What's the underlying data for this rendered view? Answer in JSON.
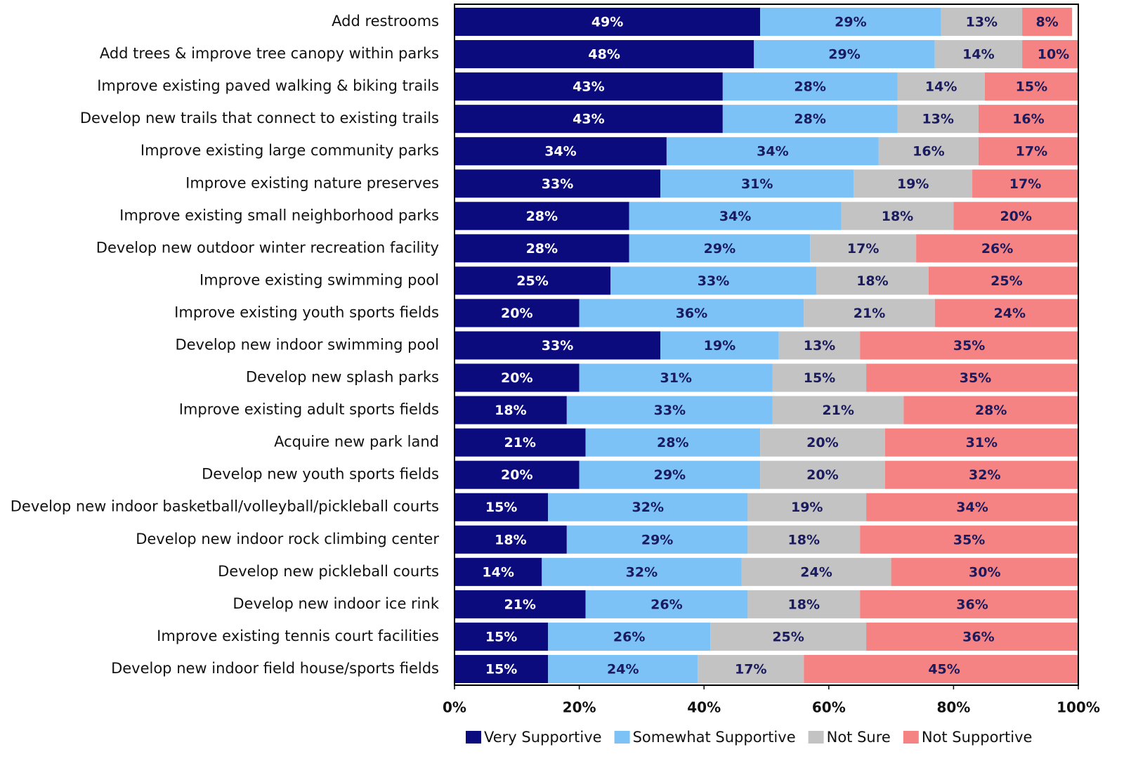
{
  "chart_data": {
    "type": "stacked-barh",
    "categories": [
      "Add restrooms",
      "Add trees & improve tree canopy within parks",
      "Improve existing paved walking & biking trails",
      "Develop new trails that connect to existing trails",
      "Improve existing large community parks",
      "Improve existing nature preserves",
      "Improve existing small neighborhood parks",
      "Develop new outdoor winter recreation facility",
      "Improve existing swimming pool",
      "Improve existing youth sports fields",
      "Develop new indoor swimming pool",
      "Develop new splash parks",
      "Improve existing adult sports fields",
      "Acquire new park land",
      "Develop new youth sports fields",
      "Develop new indoor basketball/volleyball/pickleball courts",
      "Develop new indoor rock climbing center",
      "Develop new pickleball courts",
      "Develop new indoor ice rink",
      "Improve existing tennis court facilities",
      "Develop new indoor field house/sports fields"
    ],
    "series": [
      {
        "name": "Very Supportive",
        "color": "#0b0b7e",
        "values": [
          49,
          48,
          43,
          43,
          34,
          33,
          28,
          28,
          25,
          20,
          33,
          20,
          18,
          21,
          20,
          15,
          18,
          14,
          21,
          15,
          15
        ],
        "value_labels": [
          "49%",
          "48%",
          "43%",
          "43%",
          "34%",
          "33%",
          "28%",
          "28%",
          "25%",
          "20%",
          "33%",
          "20%",
          "18%",
          "21%",
          "20%",
          "15%",
          "18%",
          "14%",
          "21%",
          "15%",
          "15%"
        ]
      },
      {
        "name": "Somewhat Supportive",
        "color": "#7cc2f6",
        "values": [
          29,
          29,
          28,
          28,
          34,
          31,
          34,
          29,
          33,
          36,
          19,
          31,
          33,
          28,
          29,
          32,
          29,
          32,
          26,
          26,
          24
        ],
        "value_labels": [
          "29%",
          "29%",
          "28%",
          "28%",
          "34%",
          "31%",
          "34%",
          "29%",
          "33%",
          "36%",
          "19%",
          "31%",
          "33%",
          "28%",
          "29%",
          "32%",
          "29%",
          "32%",
          "26%",
          "26%",
          "24%"
        ]
      },
      {
        "name": "Not Sure",
        "color": "#c3c3c3",
        "values": [
          13,
          14,
          14,
          13,
          16,
          19,
          18,
          17,
          18,
          21,
          13,
          15,
          21,
          20,
          20,
          19,
          18,
          24,
          18,
          25,
          17
        ],
        "value_labels": [
          "13%",
          "14%",
          "14%",
          "13%",
          "16%",
          "19%",
          "18%",
          "17%",
          "18%",
          "21%",
          "13%",
          "15%",
          "21%",
          "20%",
          "20%",
          "19%",
          "18%",
          "24%",
          "18%",
          "25%",
          "17%"
        ]
      },
      {
        "name": "Not Supportive",
        "color": "#f58383",
        "values": [
          8,
          10,
          15,
          16,
          17,
          17,
          20,
          26,
          25,
          24,
          35,
          35,
          28,
          31,
          32,
          34,
          35,
          30,
          36,
          36,
          45
        ],
        "value_labels": [
          "8%",
          "10%",
          "15%",
          "16%",
          "17%",
          "17%",
          "20%",
          "26%",
          "25%",
          "24%",
          "35%",
          "35%",
          "28%",
          "31%",
          "32%",
          "34%",
          "35%",
          "30%",
          "36%",
          "36%",
          "45%"
        ]
      }
    ],
    "xlim": [
      0,
      100
    ],
    "xticks": [
      {
        "value": 0,
        "label": "0%"
      },
      {
        "value": 20,
        "label": "20%"
      },
      {
        "value": 40,
        "label": "40%"
      },
      {
        "value": 60,
        "label": "60%"
      },
      {
        "value": 80,
        "label": "80%"
      },
      {
        "value": 100,
        "label": "100%"
      }
    ],
    "legend": "bottom"
  }
}
